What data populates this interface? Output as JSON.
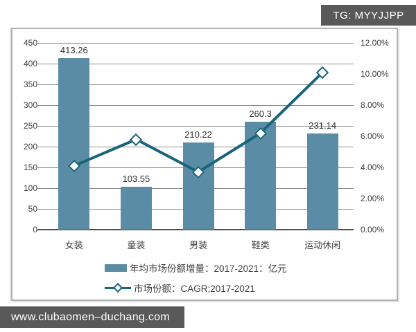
{
  "watermarks": {
    "top_right": "TG: MYYJJPP",
    "bottom_left": "www.clubaomen–duchang.com"
  },
  "colors": {
    "bar_fill": "#5b8ca6",
    "line_stroke": "#186478",
    "marker_fill": "#ffffff",
    "gridline": "#8c8c8c",
    "axis_line": "#4d4d4d",
    "text": "#3f3f3f",
    "badge_background": "#595959",
    "badge_text": "#ffffff",
    "panel_border": "#b3b3b3"
  },
  "chart_data": {
    "type": "bar",
    "subtype": "combo-bar-line",
    "categories": [
      "女装",
      "童装",
      "男装",
      "鞋类",
      "运动休闲"
    ],
    "series": [
      {
        "name": "年均市场份额增量：2017-2021：亿元",
        "type": "bar",
        "axis": "left",
        "values": [
          413.26,
          103.55,
          210.22,
          260.3,
          231.14
        ],
        "data_labels": [
          "413.26",
          "103.55",
          "210.22",
          "260.3",
          "231.14"
        ]
      },
      {
        "name": "市场份额：CAGR;2017-2021",
        "type": "line",
        "axis": "right",
        "values": [
          4.1,
          5.8,
          3.7,
          6.2,
          10.1
        ],
        "unit": "%"
      }
    ],
    "left_axis": {
      "min": 0,
      "max": 450,
      "step": 50,
      "ticks": [
        "0",
        "50",
        "100",
        "150",
        "200",
        "250",
        "300",
        "350",
        "400",
        "450"
      ]
    },
    "right_axis": {
      "min": 0,
      "max": 12,
      "step": 2,
      "ticks": [
        "0.00%",
        "2.00%",
        "4.00%",
        "6.00%",
        "8.00%",
        "10.00%",
        "12.00%"
      ]
    },
    "grid": true,
    "legend_position": "bottom"
  }
}
